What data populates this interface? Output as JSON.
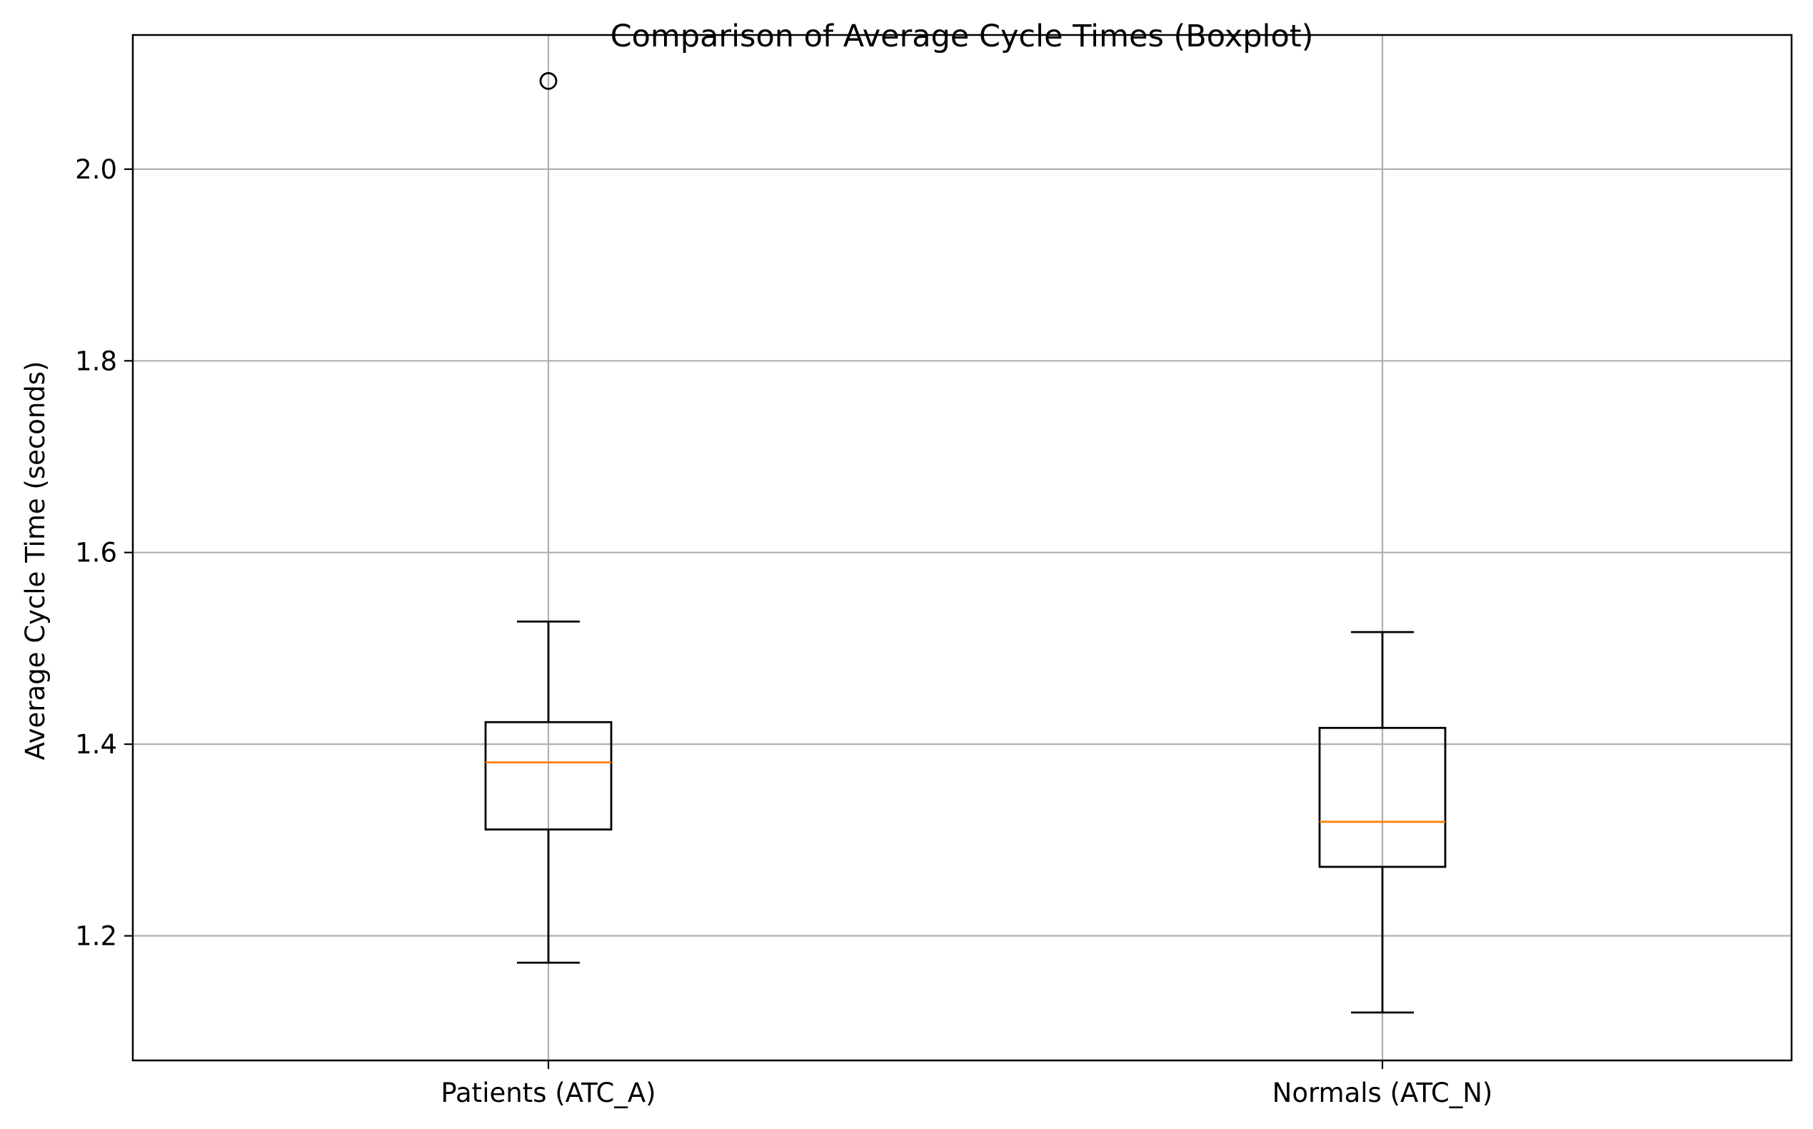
{
  "chart_data": {
    "type": "boxplot",
    "title": "Comparison of Average Cycle Times (Boxplot)",
    "xlabel": "",
    "ylabel": "Average Cycle Time (seconds)",
    "ylim": [
      1.07,
      2.14
    ],
    "yticks": [
      1.2,
      1.4,
      1.6,
      1.8,
      2.0
    ],
    "ytick_labels": [
      "1.2",
      "1.4",
      "1.6",
      "1.8",
      "2.0"
    ],
    "grid": true,
    "categories": [
      "Patients (ATC_A)",
      "Normals (ATC_N)"
    ],
    "boxes": [
      {
        "label": "Patients (ATC_A)",
        "whisker_low": 1.172,
        "q1": 1.311,
        "median": 1.381,
        "q3": 1.423,
        "whisker_high": 1.528,
        "outliers": [
          2.092
        ]
      },
      {
        "label": "Normals (ATC_N)",
        "whisker_low": 1.12,
        "q1": 1.272,
        "median": 1.319,
        "q3": 1.417,
        "whisker_high": 1.517,
        "outliers": []
      }
    ],
    "colors": {
      "box": "#000000",
      "median": "#ff7f0e",
      "grid": "#b0b0b0",
      "axes": "#000000"
    }
  }
}
